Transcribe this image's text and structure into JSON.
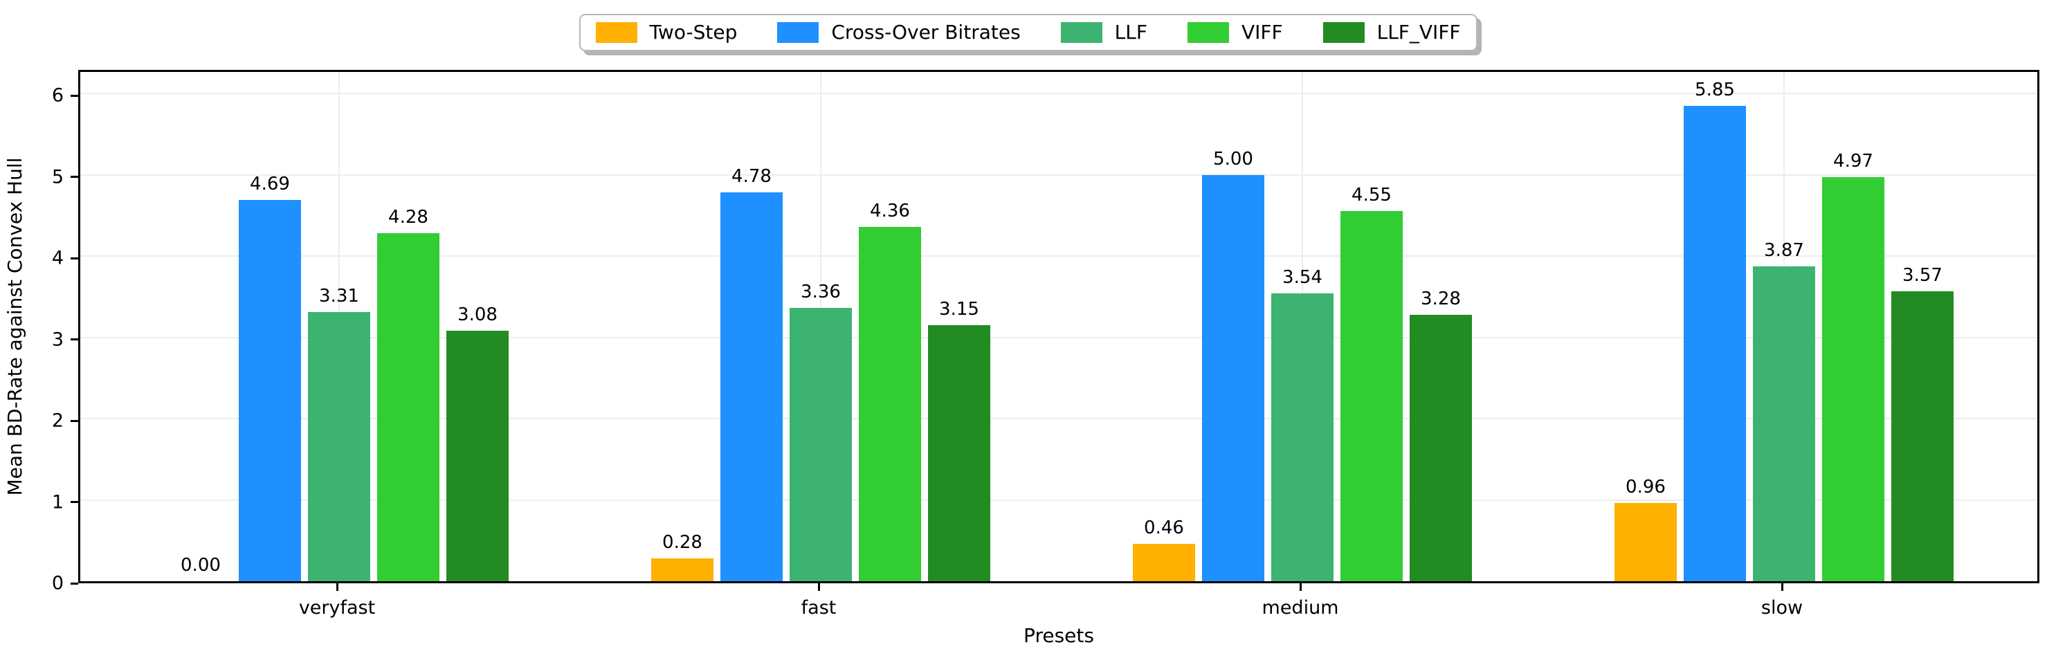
{
  "chart_data": {
    "type": "bar",
    "title": "",
    "xlabel": "Presets",
    "ylabel": "Mean BD-Rate against Convex Hull",
    "categories": [
      "veryfast",
      "fast",
      "medium",
      "slow"
    ],
    "series": [
      {
        "name": "Two-Step",
        "color": "#FFB000",
        "values": [
          0.0,
          0.28,
          0.46,
          0.96
        ]
      },
      {
        "name": "Cross-Over Bitrates",
        "color": "#1E90FF",
        "values": [
          4.69,
          4.78,
          5.0,
          5.85
        ]
      },
      {
        "name": "LLF",
        "color": "#3CB371",
        "values": [
          3.31,
          3.36,
          3.54,
          3.87
        ]
      },
      {
        "name": "VIFF",
        "color": "#32CD32",
        "values": [
          4.28,
          4.36,
          4.55,
          4.97
        ]
      },
      {
        "name": "LLF_VIFF",
        "color": "#228B22",
        "values": [
          3.08,
          3.15,
          3.28,
          3.57
        ]
      }
    ],
    "yticks": [
      0,
      1,
      2,
      3,
      4,
      5,
      6
    ],
    "ylim": [
      0,
      6.315
    ],
    "value_label_decimals": 2,
    "grid": "on",
    "legend_position": "top-center",
    "gridline_color": "#ededed",
    "axis_color": "#000000"
  }
}
